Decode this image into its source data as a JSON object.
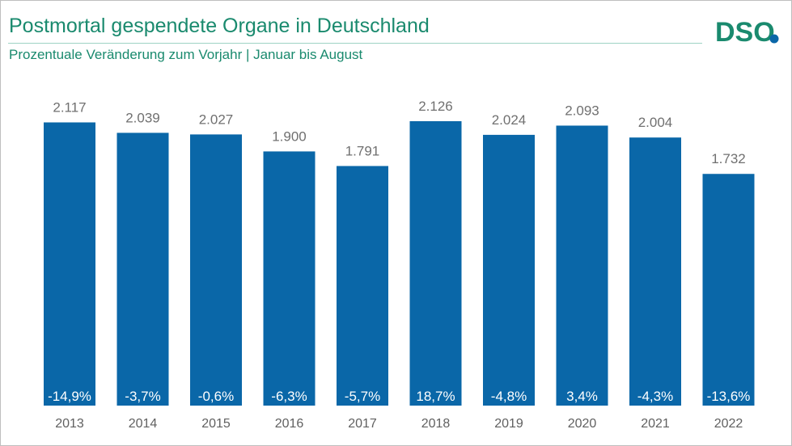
{
  "header": {
    "title": "Postmortal gespendete Organe in Deutschland",
    "subtitle": "Prozentuale Veränderung zum Vorjahr | Januar bis August",
    "logo_text": "DSO"
  },
  "colors": {
    "bar": "#0a67a8",
    "title": "#1a8a6e",
    "value_label": "#707070",
    "tick_label": "#606060",
    "pct_label": "#ffffff",
    "logo_teal": "#1a8a6e",
    "logo_dot": "#0a67a8"
  },
  "chart_data": {
    "type": "bar",
    "title": "Postmortal gespendete Organe in Deutschland",
    "subtitle": "Prozentuale Veränderung zum Vorjahr | Januar bis August",
    "categories": [
      "2013",
      "2014",
      "2015",
      "2016",
      "2017",
      "2018",
      "2019",
      "2020",
      "2021",
      "2022"
    ],
    "values": [
      2117,
      2039,
      2027,
      1900,
      1791,
      2126,
      2024,
      2093,
      2004,
      1732
    ],
    "value_labels": [
      "2.117",
      "2.039",
      "2.027",
      "1.900",
      "1.791",
      "2.126",
      "2.024",
      "2.093",
      "2.004",
      "1.732"
    ],
    "change_labels": [
      "-14,9%",
      "-3,7%",
      "-0,6%",
      "-6,3%",
      "-5,7%",
      "18,7%",
      "-4,8%",
      "3,4%",
      "-4,3%",
      "-13,6%"
    ],
    "ylim": [
      0,
      2126
    ],
    "grid": false,
    "legend": "none"
  }
}
